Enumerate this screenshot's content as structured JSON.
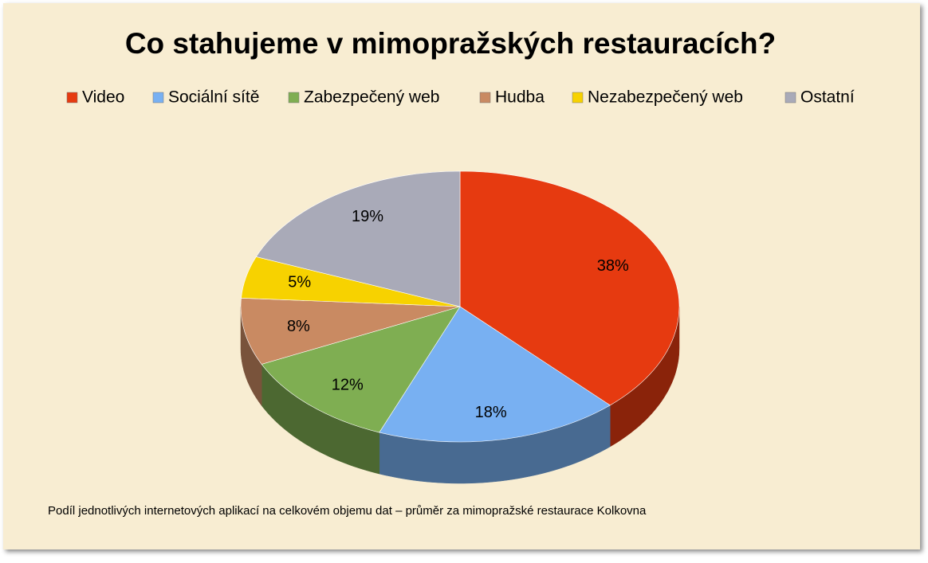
{
  "chart_data": {
    "type": "pie3d",
    "title": "Co stahujeme v mimopražských restauracích?",
    "categories": [
      "Video",
      "Sociální sítě",
      "Zabezpečený web",
      "Hudba",
      "Nezabezpečený web",
      "Ostatní"
    ],
    "values": [
      38,
      18,
      12,
      8,
      5,
      19
    ],
    "value_labels": [
      "38%",
      "18%",
      "12%",
      "8%",
      "5%",
      "19%"
    ],
    "colors": [
      "#e63a10",
      "#78b0f2",
      "#7fae52",
      "#c98a62",
      "#f7d200",
      "#a9aab8"
    ],
    "caption": "Podíl jednotlivých internetových aplikací na celkovém objemu dat – průměr za mimopražské restaurace  Kolkovna"
  }
}
